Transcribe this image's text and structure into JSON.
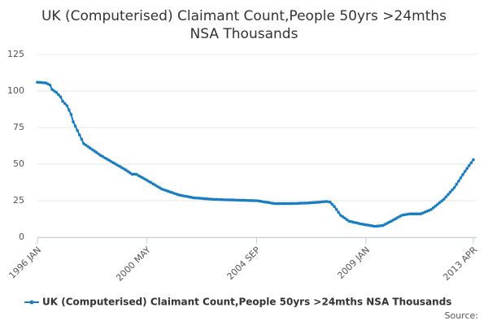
{
  "chart_data": {
    "type": "line",
    "title": [
      "UK (Computerised) Claimant Count,People 50yrs >24mths",
      "NSA Thousands"
    ],
    "categories": [
      "1996 JAN",
      null,
      null,
      null,
      null,
      null,
      null,
      null,
      null,
      null,
      null,
      null,
      null,
      null,
      null,
      null,
      null,
      null,
      null,
      null,
      null,
      null,
      null,
      null,
      null,
      null,
      null,
      null,
      null,
      null,
      null,
      null,
      null,
      null,
      null,
      null,
      null,
      null,
      null,
      null,
      null,
      null,
      null,
      null,
      null,
      null,
      null,
      null,
      null,
      null,
      null,
      null,
      "2000 MAY",
      null,
      null,
      null,
      null,
      null,
      null,
      null,
      null,
      null,
      null,
      null,
      null,
      null,
      null,
      null,
      null,
      null,
      null,
      null,
      null,
      null,
      null,
      null,
      null,
      null,
      null,
      null,
      null,
      null,
      null,
      null,
      null,
      null,
      null,
      null,
      null,
      null,
      null,
      null,
      null,
      null,
      null,
      null,
      null,
      null,
      null,
      null,
      null,
      null,
      null,
      null,
      "2004 SEP",
      null,
      null,
      null,
      null,
      null,
      null,
      null,
      null,
      null,
      null,
      null,
      null,
      null,
      null,
      null,
      null,
      null,
      null,
      null,
      null,
      null,
      null,
      null,
      null,
      null,
      null,
      null,
      null,
      null,
      null,
      null,
      null,
      null,
      null,
      null,
      null,
      null,
      null,
      null,
      null,
      null,
      null,
      null,
      null,
      null,
      null,
      null,
      null,
      null,
      null,
      null,
      "2009 JAN",
      null,
      null,
      null,
      null,
      null,
      null,
      null,
      null,
      null,
      null,
      null,
      null,
      null,
      null,
      null,
      null,
      null,
      null,
      null,
      null,
      null,
      null,
      null,
      null,
      null,
      null,
      null,
      null,
      null,
      null,
      null,
      null,
      null,
      null,
      null,
      null,
      null,
      null,
      null,
      null,
      null,
      null,
      null,
      null,
      null,
      null,
      null,
      null,
      null,
      null,
      "2013 APR"
    ],
    "series": [
      {
        "name": "UK (Computerised) Claimant Count,People 50yrs >24mths NSA Thousands",
        "color": "#1a7dc0",
        "values": [
          106,
          105.9,
          105.8,
          105.6,
          105.5,
          104.8,
          104,
          101,
          100,
          99,
          97.5,
          96,
          93,
          91.5,
          90,
          87,
          84,
          79,
          76,
          73,
          70,
          67,
          64,
          63,
          62,
          61,
          60,
          59,
          58,
          57,
          56,
          55.2,
          54.3,
          53.5,
          52.7,
          51.8,
          51,
          50.2,
          49.3,
          48.5,
          47.7,
          46.8,
          46,
          45,
          44,
          43,
          43.2,
          43,
          42.2,
          41.4,
          40.6,
          39.8,
          39,
          38.1,
          37.3,
          36.4,
          35.6,
          34.7,
          33.9,
          33,
          32.5,
          32,
          31.5,
          31,
          30.5,
          30,
          29.5,
          29,
          28.7,
          28.4,
          28.1,
          27.9,
          27.6,
          27.3,
          27,
          26.9,
          26.8,
          26.7,
          26.6,
          26.4,
          26.3,
          26.2,
          26.1,
          26,
          25.9,
          25.9,
          25.8,
          25.8,
          25.7,
          25.6,
          25.6,
          25.5,
          25.5,
          25.5,
          25.4,
          25.4,
          25.3,
          25.3,
          25.3,
          25.2,
          25.2,
          25.1,
          25.1,
          25,
          25,
          24.8,
          24.6,
          24.3,
          24.1,
          23.9,
          23.7,
          23.4,
          23.2,
          23,
          23,
          23,
          23,
          23,
          23,
          23,
          23,
          23,
          23.1,
          23.1,
          23.2,
          23.3,
          23.3,
          23.4,
          23.4,
          23.5,
          23.6,
          23.7,
          23.8,
          23.9,
          24,
          24.2,
          24.3,
          24.5,
          24.3,
          24,
          22.5,
          21,
          19,
          17,
          15,
          14,
          13,
          12,
          11,
          10.7,
          10.3,
          10,
          9.7,
          9.3,
          9,
          8.8,
          8.5,
          8.3,
          8,
          7.8,
          7.5,
          7.6,
          7.7,
          7.9,
          8,
          8.8,
          9.5,
          10.3,
          11,
          11.8,
          12.6,
          13.4,
          14.2,
          15,
          15.3,
          15.5,
          15.8,
          16,
          16,
          16,
          16,
          16,
          16,
          16.6,
          17.2,
          17.8,
          18.4,
          19,
          20.2,
          21.3,
          22.5,
          23.7,
          24.8,
          26,
          27.6,
          29.2,
          30.8,
          32.4,
          34,
          36.2,
          38.4,
          40.6,
          42.8,
          45,
          47,
          49,
          51,
          53
        ]
      }
    ],
    "ylim": [
      0,
      125
    ],
    "yticks": [
      0,
      25,
      50,
      75,
      100,
      125
    ],
    "grid": true,
    "source": "Source:"
  }
}
